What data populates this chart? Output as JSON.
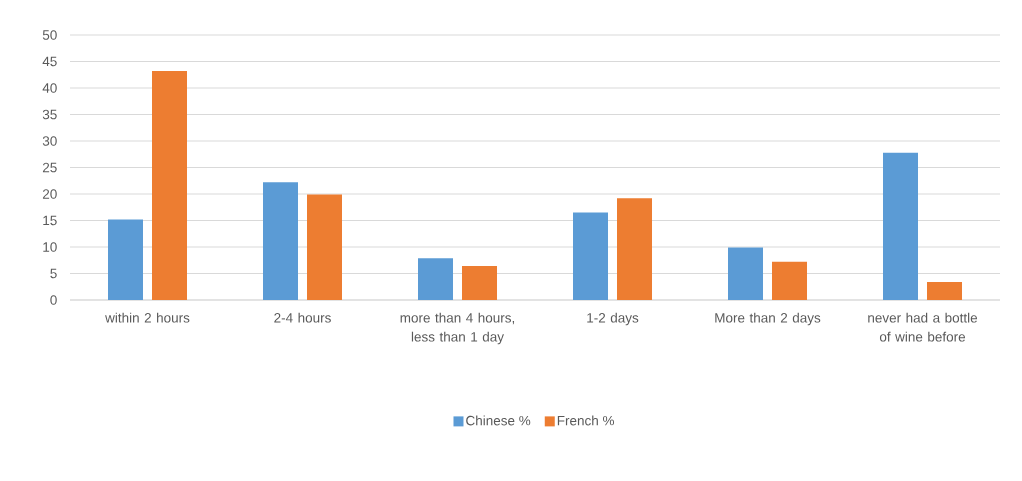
{
  "chart_data": {
    "type": "bar",
    "categories": [
      "within 2 hours",
      "2-4 hours",
      "more than 4 hours, less than 1 day",
      "1-2 days",
      "More than 2 days",
      "never had a bottle of wine before"
    ],
    "series": [
      {
        "name": "Chinese %",
        "color": "#5b9bd5",
        "values": [
          15.2,
          22.2,
          7.9,
          16.5,
          9.9,
          27.8
        ]
      },
      {
        "name": "French %",
        "color": "#ed7d31",
        "values": [
          43.2,
          19.9,
          6.4,
          19.2,
          7.2,
          3.4
        ]
      }
    ],
    "ylim": [
      0,
      50
    ],
    "yticks": [
      0,
      5,
      10,
      15,
      20,
      25,
      30,
      35,
      40,
      45,
      50
    ],
    "grid": "y",
    "legend": "bottom"
  }
}
